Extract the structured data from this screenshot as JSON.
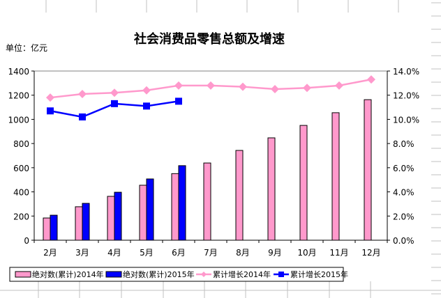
{
  "chart_data": {
    "type": "bar",
    "title": "社会消费品零售总额及增速",
    "unit_label": "单位：亿元",
    "categories": [
      "2月",
      "3月",
      "4月",
      "5月",
      "6月",
      "7月",
      "8月",
      "9月",
      "10月",
      "11月",
      "12月"
    ],
    "y_left": {
      "min": 0,
      "max": 1400,
      "ticks": [
        "0",
        "200",
        "400",
        "600",
        "800",
        "1000",
        "1200",
        "1400"
      ]
    },
    "y_right": {
      "min": 0,
      "max": 14,
      "ticks": [
        "0.0%",
        "2.0%",
        "4.0%",
        "6.0%",
        "8.0%",
        "10.0%",
        "12.0%",
        "14.0%"
      ]
    },
    "series": [
      {
        "name": "绝对数(累计)2014年",
        "kind": "bar",
        "axis": "left",
        "color": "#FF99CC",
        "values": [
          184,
          277,
          363,
          455,
          551,
          639,
          743,
          847,
          950,
          1055,
          1163
        ]
      },
      {
        "name": "绝对数(累计)2015年",
        "kind": "bar",
        "axis": "left",
        "color": "#0000FF",
        "values": [
          207,
          305,
          397,
          507,
          617,
          null,
          null,
          null,
          null,
          null,
          null
        ]
      },
      {
        "name": "累计增长2014年",
        "kind": "line",
        "axis": "right",
        "marker": "diamond",
        "color": "#FF99CC",
        "values": [
          11.8,
          12.1,
          12.2,
          12.4,
          12.8,
          12.8,
          12.7,
          12.5,
          12.6,
          12.8,
          13.3
        ]
      },
      {
        "name": "累计增长2015年",
        "kind": "line",
        "axis": "right",
        "marker": "square",
        "color": "#0000FF",
        "values": [
          10.7,
          10.2,
          11.3,
          11.1,
          11.5,
          null,
          null,
          null,
          null,
          null,
          null
        ]
      }
    ],
    "legend_position": "bottom",
    "grid": false
  }
}
